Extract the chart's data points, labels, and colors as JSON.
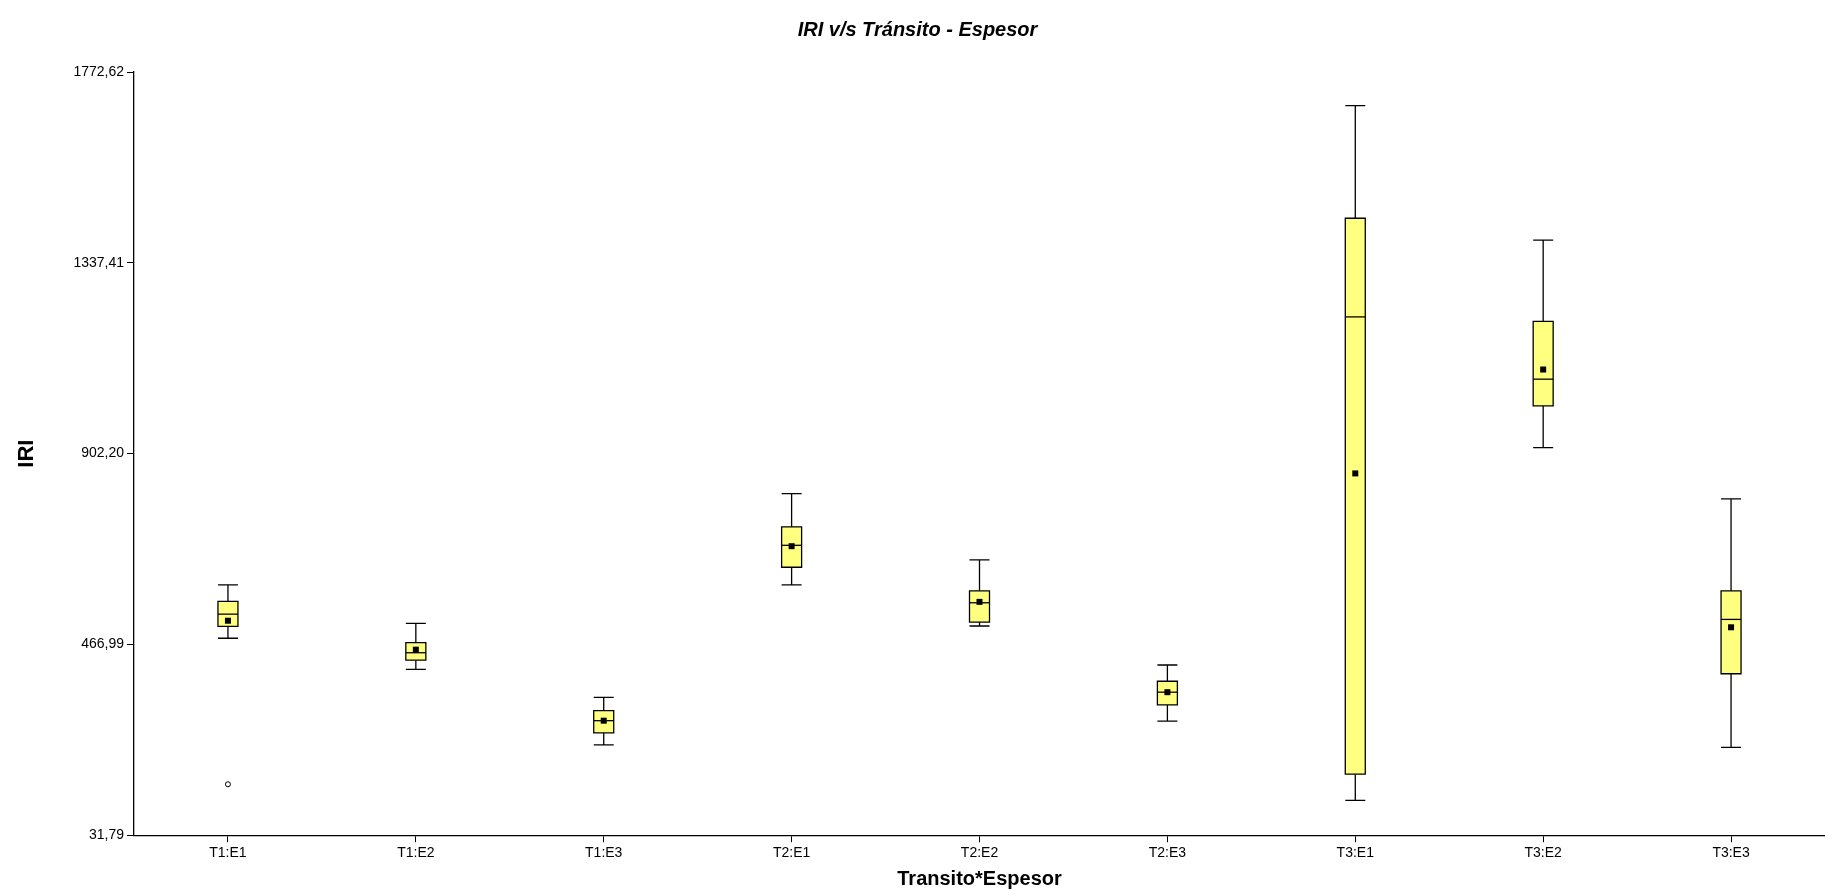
{
  "chart_data": {
    "type": "box",
    "title": "IRI v/s Tránsito - Espesor",
    "xlabel": "Transito*Espesor",
    "ylabel": "IRI",
    "categories": [
      "T1:E1",
      "T1:E2",
      "T1:E3",
      "T2:E1",
      "T2:E2",
      "T2:E3",
      "T3:E1",
      "T3:E2",
      "T3:E3"
    ],
    "color": "#ffff80",
    "boxes": [
      {
        "low": 481,
        "q1": 508,
        "median": 536,
        "q3": 565,
        "high": 603,
        "mean": 521,
        "outliers": [
          148
        ]
      },
      {
        "low": 410,
        "q1": 431,
        "median": 448,
        "q3": 471,
        "high": 515,
        "mean": 455
      },
      {
        "low": 238,
        "q1": 265,
        "median": 293,
        "q3": 316,
        "high": 346,
        "mean": 293
      },
      {
        "low": 603,
        "q1": 643,
        "median": 693,
        "q3": 735,
        "high": 811,
        "mean": 691
      },
      {
        "low": 509,
        "q1": 518,
        "median": 562,
        "q3": 589,
        "high": 660,
        "mean": 564
      },
      {
        "low": 292,
        "q1": 329,
        "median": 358,
        "q3": 383,
        "high": 420,
        "mean": 358
      },
      {
        "low": 111,
        "q1": 171,
        "median": 1214,
        "q3": 1439,
        "high": 1696,
        "mean": 857
      },
      {
        "low": 916,
        "q1": 1011,
        "median": 1072,
        "q3": 1204,
        "high": 1389,
        "mean": 1094
      },
      {
        "low": 232,
        "q1": 400,
        "median": 524,
        "q3": 589,
        "high": 799,
        "mean": 506
      }
    ],
    "ylim": [
      31.79,
      1772.62
    ],
    "yticks": [
      {
        "value": 31.79,
        "label": "31,79"
      },
      {
        "value": 466.99,
        "label": "466,99"
      },
      {
        "value": 902.2,
        "label": "902,20"
      },
      {
        "value": 1337.41,
        "label": "1337,41"
      },
      {
        "value": 1772.62,
        "label": "1772,62"
      }
    ],
    "grid": false,
    "legend": false
  }
}
